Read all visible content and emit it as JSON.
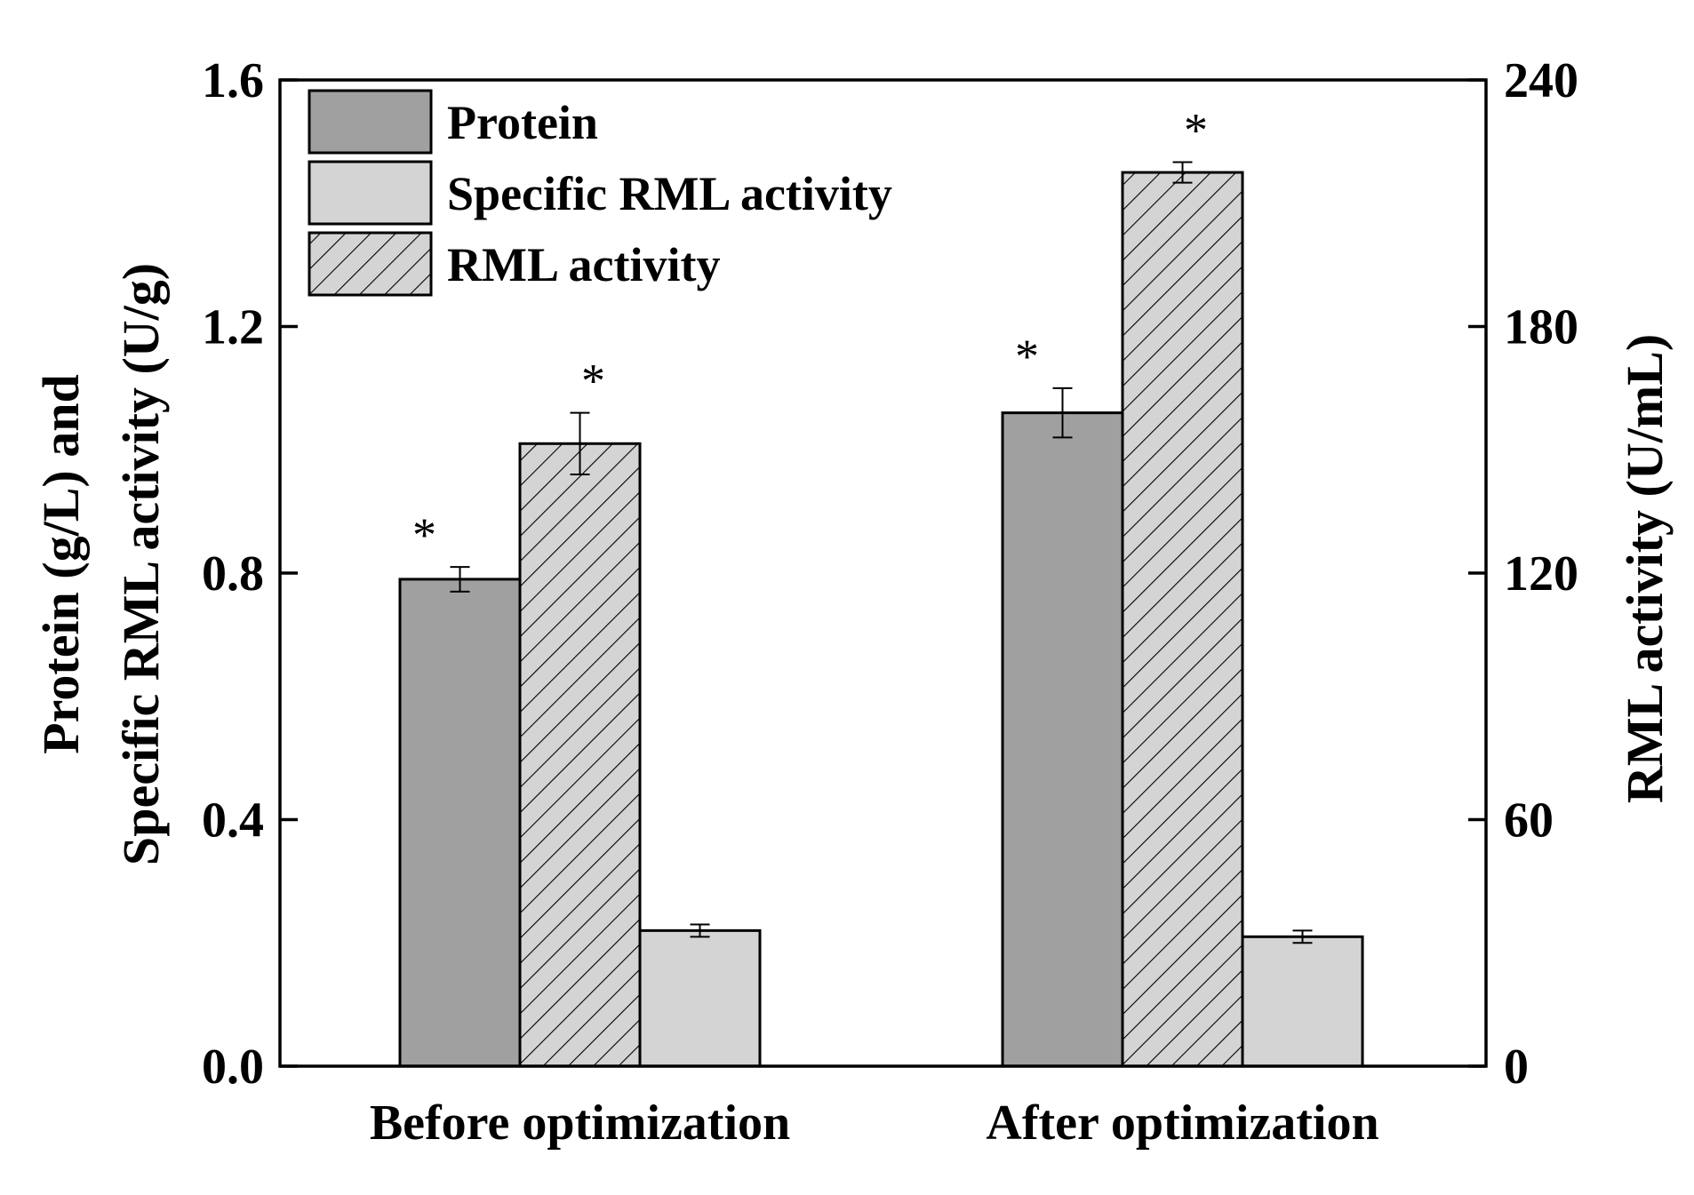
{
  "chart_data": {
    "type": "bar",
    "categories": [
      "Before optimization",
      "After optimization"
    ],
    "series": [
      {
        "name": "Protein",
        "axis": "left",
        "fill": "#a0a0a0",
        "pattern": "none",
        "values": [
          0.79,
          1.06
        ],
        "errors": [
          0.02,
          0.04
        ],
        "significance": [
          "*",
          "*"
        ]
      },
      {
        "name": "RML activity",
        "axis": "right",
        "fill": "#d4d4d4",
        "pattern": "hatch",
        "values": [
          151.5,
          217.5
        ],
        "errors": [
          7.5,
          2.5
        ],
        "significance": [
          "*",
          "*"
        ]
      },
      {
        "name": "Specific RML activity",
        "axis": "left",
        "fill": "#d4d4d4",
        "pattern": "none",
        "values": [
          0.22,
          0.21
        ],
        "errors": [
          0.01,
          0.01
        ],
        "significance": [
          "",
          ""
        ]
      }
    ],
    "legend_order": [
      "Protein",
      "Specific RML activity",
      "RML activity"
    ],
    "legend_position": "top-left",
    "y_left": {
      "label_line1": "Protein (g/L) and",
      "label_line2": "Specific RML activity (U/g)",
      "lim": [
        0,
        1.6
      ],
      "ticks": [
        0.0,
        0.4,
        0.8,
        1.2,
        1.6
      ],
      "tick_labels": [
        "0.0",
        "0.4",
        "0.8",
        "1.2",
        "1.6"
      ]
    },
    "y_right": {
      "label": "RML activity (U/mL)",
      "lim": [
        0,
        240
      ],
      "ticks": [
        0,
        60,
        120,
        180,
        240
      ],
      "tick_labels": [
        "0",
        "60",
        "120",
        "180",
        "240"
      ]
    },
    "grid": false
  }
}
